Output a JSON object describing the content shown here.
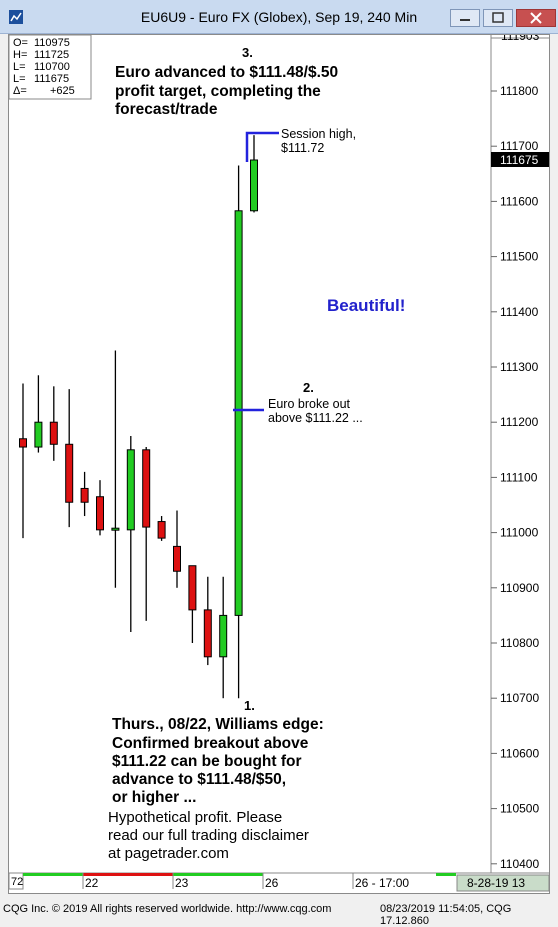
{
  "window": {
    "title": "EU6U9 - Euro FX (Globex), Sep 19, 240 Min"
  },
  "ohlc_box": [
    {
      "label": "O=",
      "value": "110975"
    },
    {
      "label": "H=",
      "value": "111725"
    },
    {
      "label": "L=",
      "value": "110700"
    },
    {
      "label": "L=",
      "value": "111675"
    },
    {
      "label": "Δ=",
      "value": "+625"
    }
  ],
  "price_axis": {
    "top_label": "111903",
    "labels": [
      "111800",
      "111700",
      "111600",
      "111500",
      "111400",
      "111300",
      "111200",
      "111100",
      "111000",
      "110900",
      "110800",
      "110700",
      "110600",
      "110500",
      "110400"
    ],
    "current_value": "111675"
  },
  "time_axis": {
    "left_label": "72",
    "labels": [
      "22",
      "23",
      "26",
      "26 - 17:00"
    ],
    "right_label": "8-28-19  13"
  },
  "annotations": {
    "top_number": "3.",
    "top_text": [
      "Euro advanced to $111.48/$.50",
      "profit target, completing the",
      "forecast/trade"
    ],
    "session_high": [
      "Session high,",
      "$111.72"
    ],
    "beautiful": "Beautiful!",
    "breakout_number": "2.",
    "breakout_text": [
      "Euro broke out",
      "above $111.22 ..."
    ],
    "bottom_number": "1.",
    "bottom_text": [
      "Thurs., 08/22, Williams edge:",
      "Confirmed breakout above",
      "$111.22 can be bought for",
      "advance to $111.48/$50,",
      "or higher ..."
    ],
    "disclaimer": [
      "Hypothetical profit.  Please",
      "read our full trading disclaimer",
      "at pagetrader.com"
    ]
  },
  "colors": {
    "up": "#22cc22",
    "down": "#dd1111",
    "annotation_line": "#2222dd",
    "beautiful": "#2222cc"
  },
  "footer": {
    "left": "CQG Inc. © 2019 All rights reserved worldwide. http://www.cqg.com",
    "right": "08/23/2019 11:54:05, CQG 17.12.860"
  },
  "chart_data": {
    "type": "candlestick",
    "instrument": "EU6U9",
    "interval": "240 Min",
    "ylim": [
      110360,
      111903
    ],
    "candles": [
      {
        "o": 111170,
        "h": 111270,
        "l": 110990,
        "c": 111155
      },
      {
        "o": 111155,
        "h": 111285,
        "l": 111145,
        "c": 111200
      },
      {
        "o": 111200,
        "h": 111265,
        "l": 111130,
        "c": 111160
      },
      {
        "o": 111160,
        "h": 111260,
        "l": 111010,
        "c": 111055
      },
      {
        "o": 111080,
        "h": 111110,
        "l": 111030,
        "c": 111055
      },
      {
        "o": 111065,
        "h": 111095,
        "l": 110995,
        "c": 111005
      },
      {
        "o": 111005,
        "h": 111330,
        "l": 110900,
        "c": 111008
      },
      {
        "o": 111005,
        "h": 111175,
        "l": 110820,
        "c": 111150
      },
      {
        "o": 111150,
        "h": 111155,
        "l": 110840,
        "c": 111010
      },
      {
        "o": 111020,
        "h": 111030,
        "l": 110985,
        "c": 110990
      },
      {
        "o": 110975,
        "h": 111040,
        "l": 110900,
        "c": 110930
      },
      {
        "o": 110940,
        "h": 110940,
        "l": 110800,
        "c": 110860
      },
      {
        "o": 110860,
        "h": 110920,
        "l": 110760,
        "c": 110775
      },
      {
        "o": 110775,
        "h": 110920,
        "l": 110700,
        "c": 110850
      },
      {
        "o": 110850,
        "h": 111665,
        "l": 110700,
        "c": 111583
      },
      {
        "o": 111583,
        "h": 111720,
        "l": 111580,
        "c": 111675
      }
    ]
  }
}
